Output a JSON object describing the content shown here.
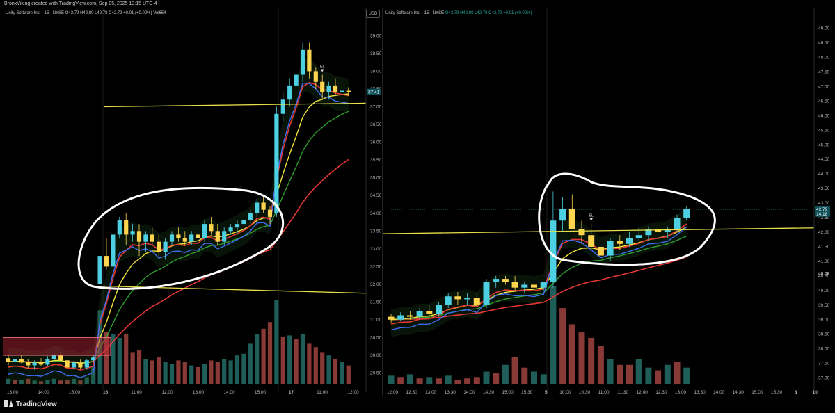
{
  "header": {
    "credit": "BronxViking created with TradingView.com, Sep 05, 2025 13:15 UTC-4"
  },
  "footer": {
    "brand": "TradingView"
  },
  "colors": {
    "up": "#4dd0e1",
    "down": "#ffd54f",
    "vol_up": "#1f5e58",
    "vol_down": "#8a3a36",
    "ema_red": "#e53935",
    "ema_blue": "#3f6df2",
    "ema_green": "#2e9d2e",
    "ema_yellow": "#f5e63a",
    "drawn_line": "#e8e04a",
    "annotation": "#ffffff",
    "zone": "#d23a4e"
  },
  "left_panel": {
    "legend": {
      "name": "Unity Software Inc. · 15 · NYSE",
      "o": "O42.79",
      "h": "H42.80",
      "l": "L42.78",
      "c": "C42.79",
      "chg": "+0.01 (+0.02%)",
      "vol": "Vol654"
    },
    "currency": "USD",
    "price_labels": [
      "39.00",
      "38.50",
      "38.00",
      "37.50",
      "37.00",
      "36.50",
      "36.00",
      "35.50",
      "35.00",
      "34.50",
      "34.00",
      "33.50",
      "33.00",
      "32.50",
      "32.00",
      "31.50",
      "31.00",
      "30.50",
      "30.00",
      "29.50"
    ],
    "last_price": "37.41",
    "time_labels": [
      "13:00",
      "14:00",
      "15:00",
      "16",
      "11:00",
      "12:00",
      "13:00",
      "14:00",
      "15:00",
      "17",
      "11:00",
      "12:00"
    ],
    "marker": "EL"
  },
  "right_panel": {
    "legend": {
      "name": "Unity Software Inc. · 15 · NYSE",
      "o": "O42.79",
      "h": "H42.80",
      "l": "L42.78",
      "c": "C42.79",
      "chg": "+0.01 (+0.02%)"
    },
    "price_labels": [
      "49.00",
      "48.50",
      "48.00",
      "47.50",
      "47.00",
      "46.50",
      "46.00",
      "45.50",
      "45.00",
      "44.50",
      "44.00",
      "43.50",
      "43.00",
      "42.50",
      "42.00",
      "41.50",
      "41.00",
      "40.50",
      "40.00",
      "39.50",
      "39.00",
      "38.50",
      "38.00",
      "37.50",
      "37.00"
    ],
    "last_price": "42.79",
    "countdown": "14:18",
    "side_value": "40.58",
    "time_labels": [
      "12:00",
      "12:30",
      "13:00",
      "13:30",
      "14:00",
      "14:30",
      "15:00",
      "15:30",
      "5",
      "10:00",
      "10:30",
      "11:00",
      "11:30",
      "12:00",
      "12:30",
      "13:00",
      "13:30",
      "14:00",
      "14:30",
      "15:00",
      "15:30",
      "8",
      "10"
    ],
    "marker": "EL"
  },
  "chart_data": [
    {
      "type": "candlestick",
      "title": "Unity Software Inc. · 15 · NYSE",
      "ylim": [
        29.2,
        39.3
      ],
      "x_ticks": [
        "13:00",
        "14:00",
        "15:00",
        "16",
        "11:00",
        "12:00",
        "13:00",
        "14:00",
        "15:00",
        "17",
        "11:00",
        "12:00"
      ],
      "candles": [
        [
          29.92,
          30.02,
          29.72,
          29.82
        ],
        [
          29.82,
          29.98,
          29.68,
          29.9
        ],
        [
          29.9,
          30.02,
          29.78,
          29.8
        ],
        [
          29.8,
          29.9,
          29.64,
          29.72
        ],
        [
          29.72,
          29.86,
          29.6,
          29.8
        ],
        [
          29.8,
          29.92,
          29.7,
          29.74
        ],
        [
          29.74,
          29.98,
          29.7,
          29.9
        ],
        [
          29.9,
          30.08,
          29.84,
          30.0
        ],
        [
          30.0,
          30.1,
          29.86,
          29.86
        ],
        [
          29.86,
          29.94,
          29.62,
          29.66
        ],
        [
          29.66,
          29.84,
          29.6,
          29.8
        ],
        [
          29.8,
          29.88,
          29.62,
          29.66
        ],
        [
          29.66,
          29.9,
          29.6,
          29.86
        ],
        [
          29.86,
          30.0,
          29.8,
          29.94
        ],
        [
          32.0,
          33.2,
          31.9,
          32.8
        ],
        [
          32.8,
          33.3,
          32.4,
          32.5
        ],
        [
          32.5,
          33.7,
          32.4,
          33.4
        ],
        [
          33.4,
          33.9,
          33.3,
          33.8
        ],
        [
          33.8,
          34.0,
          33.1,
          33.4
        ],
        [
          33.4,
          33.7,
          33.2,
          33.5
        ],
        [
          33.5,
          33.7,
          32.8,
          33.2
        ],
        [
          33.2,
          33.5,
          32.9,
          33.4
        ],
        [
          33.4,
          33.6,
          33.1,
          33.2
        ],
        [
          33.2,
          33.4,
          32.8,
          32.9
        ],
        [
          32.9,
          33.3,
          32.7,
          33.2
        ],
        [
          33.2,
          33.5,
          33.1,
          33.4
        ],
        [
          33.4,
          33.6,
          33.2,
          33.3
        ],
        [
          33.3,
          33.5,
          33.1,
          33.2
        ],
        [
          33.2,
          33.5,
          33.1,
          33.4
        ],
        [
          33.4,
          33.6,
          33.2,
          33.3
        ],
        [
          33.3,
          33.8,
          33.2,
          33.7
        ],
        [
          33.7,
          33.9,
          33.4,
          33.5
        ],
        [
          33.5,
          33.7,
          33.1,
          33.2
        ],
        [
          33.2,
          33.6,
          33.1,
          33.5
        ],
        [
          33.5,
          33.7,
          33.4,
          33.6
        ],
        [
          33.6,
          33.8,
          33.4,
          33.7
        ],
        [
          33.7,
          33.8,
          33.5,
          33.8
        ],
        [
          33.8,
          34.1,
          33.7,
          34.0
        ],
        [
          34.0,
          34.4,
          33.9,
          34.3
        ],
        [
          34.3,
          34.5,
          34.0,
          34.1
        ],
        [
          34.1,
          34.2,
          33.7,
          33.9
        ],
        [
          34.0,
          37.0,
          33.9,
          36.8
        ],
        [
          36.8,
          37.4,
          36.6,
          37.2
        ],
        [
          37.2,
          37.8,
          37.0,
          37.6
        ],
        [
          37.6,
          38.1,
          37.3,
          37.9
        ],
        [
          37.9,
          38.8,
          37.7,
          38.6
        ],
        [
          38.6,
          38.8,
          37.8,
          38.0
        ],
        [
          38.0,
          38.1,
          37.5,
          37.7
        ],
        [
          37.7,
          37.9,
          37.2,
          37.4
        ],
        [
          37.4,
          37.7,
          37.2,
          37.6
        ],
        [
          37.6,
          37.8,
          37.3,
          37.4
        ],
        [
          37.4,
          37.6,
          37.2,
          37.45
        ],
        [
          37.45,
          37.55,
          37.3,
          37.41
        ]
      ],
      "volume": [
        [
          6,
          1
        ],
        [
          5,
          0
        ],
        [
          5,
          1
        ],
        [
          6,
          0
        ],
        [
          4,
          1
        ],
        [
          3,
          0
        ],
        [
          5,
          1
        ],
        [
          6,
          1
        ],
        [
          4,
          0
        ],
        [
          5,
          0
        ],
        [
          6,
          1
        ],
        [
          4,
          0
        ],
        [
          8,
          1
        ],
        [
          20,
          1
        ],
        [
          88,
          1
        ],
        [
          62,
          0
        ],
        [
          60,
          1
        ],
        [
          55,
          1
        ],
        [
          60,
          0
        ],
        [
          38,
          0
        ],
        [
          40,
          0
        ],
        [
          30,
          1
        ],
        [
          28,
          0
        ],
        [
          32,
          0
        ],
        [
          26,
          1
        ],
        [
          24,
          1
        ],
        [
          28,
          0
        ],
        [
          26,
          0
        ],
        [
          22,
          1
        ],
        [
          20,
          0
        ],
        [
          24,
          1
        ],
        [
          28,
          0
        ],
        [
          26,
          0
        ],
        [
          30,
          1
        ],
        [
          28,
          1
        ],
        [
          34,
          1
        ],
        [
          36,
          1
        ],
        [
          48,
          1
        ],
        [
          60,
          1
        ],
        [
          66,
          0
        ],
        [
          74,
          0
        ],
        [
          100,
          1
        ],
        [
          56,
          0
        ],
        [
          58,
          1
        ],
        [
          54,
          0
        ],
        [
          60,
          1
        ],
        [
          48,
          0
        ],
        [
          44,
          0
        ],
        [
          38,
          0
        ],
        [
          34,
          1
        ],
        [
          30,
          0
        ],
        [
          26,
          1
        ],
        [
          22,
          0
        ]
      ],
      "drawn_lines": [
        {
          "y1": 37.0,
          "y2": 37.1
        },
        {
          "y1": 31.95,
          "y2": 31.75
        }
      ]
    },
    {
      "type": "candlestick",
      "title": "Unity Software Inc. · 15 · NYSE",
      "ylim": [
        36.8,
        49.3
      ],
      "x_ticks": [
        "12:00",
        "12:30",
        "13:00",
        "13:30",
        "14:00",
        "14:30",
        "15:00",
        "15:30",
        "5",
        "10:00",
        "10:30",
        "11:00",
        "11:30",
        "12:00",
        "12:30",
        "13:00",
        "13:30",
        "14:00",
        "14:30",
        "15:00",
        "15:30",
        "8",
        "10"
      ],
      "candles": [
        [
          39.1,
          39.2,
          38.9,
          39.0
        ],
        [
          39.0,
          39.25,
          38.95,
          39.15
        ],
        [
          39.15,
          39.3,
          39.0,
          39.1
        ],
        [
          39.1,
          39.4,
          39.0,
          39.3
        ],
        [
          39.3,
          39.5,
          39.1,
          39.2
        ],
        [
          39.2,
          39.6,
          39.1,
          39.5
        ],
        [
          39.5,
          39.9,
          39.4,
          39.8
        ],
        [
          39.8,
          39.95,
          39.5,
          39.7
        ],
        [
          39.7,
          39.9,
          39.5,
          39.75
        ],
        [
          39.75,
          39.9,
          39.4,
          39.5
        ],
        [
          39.5,
          40.4,
          39.4,
          40.3
        ],
        [
          40.3,
          40.5,
          40.1,
          40.4
        ],
        [
          40.4,
          40.5,
          40.2,
          40.3
        ],
        [
          40.3,
          40.5,
          40.0,
          40.1
        ],
        [
          40.1,
          40.3,
          39.9,
          40.2
        ],
        [
          40.2,
          40.4,
          40.0,
          40.1
        ],
        [
          40.1,
          40.3,
          40.0,
          40.3
        ],
        [
          40.3,
          43.4,
          40.1,
          42.4
        ],
        [
          42.4,
          43.2,
          42.0,
          42.8
        ],
        [
          42.8,
          43.3,
          42.2,
          42.1
        ],
        [
          42.1,
          42.4,
          41.6,
          41.9
        ],
        [
          41.9,
          42.3,
          41.4,
          41.5
        ],
        [
          41.5,
          41.9,
          41.0,
          41.2
        ],
        [
          41.2,
          41.8,
          41.0,
          41.7
        ],
        [
          41.7,
          41.9,
          41.4,
          41.6
        ],
        [
          41.6,
          42.0,
          41.5,
          41.8
        ],
        [
          41.8,
          42.2,
          41.7,
          41.9
        ],
        [
          41.9,
          42.2,
          41.7,
          42.1
        ],
        [
          42.1,
          42.3,
          41.9,
          42.0
        ],
        [
          42.0,
          42.2,
          41.8,
          42.1
        ],
        [
          42.1,
          42.6,
          42.0,
          42.5
        ],
        [
          42.5,
          42.9,
          42.4,
          42.79
        ]
      ],
      "volume": [
        [
          6,
          1
        ],
        [
          5,
          0
        ],
        [
          7,
          1
        ],
        [
          4,
          0
        ],
        [
          5,
          1
        ],
        [
          4,
          0
        ],
        [
          6,
          1
        ],
        [
          3,
          0
        ],
        [
          4,
          0
        ],
        [
          5,
          0
        ],
        [
          9,
          1
        ],
        [
          8,
          0
        ],
        [
          14,
          1
        ],
        [
          20,
          0
        ],
        [
          12,
          0
        ],
        [
          9,
          1
        ],
        [
          7,
          1
        ],
        [
          72,
          1
        ],
        [
          56,
          0
        ],
        [
          44,
          0
        ],
        [
          38,
          0
        ],
        [
          34,
          0
        ],
        [
          28,
          0
        ],
        [
          18,
          1
        ],
        [
          14,
          0
        ],
        [
          14,
          0
        ],
        [
          18,
          1
        ],
        [
          12,
          1
        ],
        [
          10,
          0
        ],
        [
          14,
          1
        ],
        [
          16,
          0
        ],
        [
          12,
          1
        ]
      ],
      "drawn_lines": [
        {
          "y1": 41.95,
          "y2": 42.15
        }
      ]
    }
  ]
}
